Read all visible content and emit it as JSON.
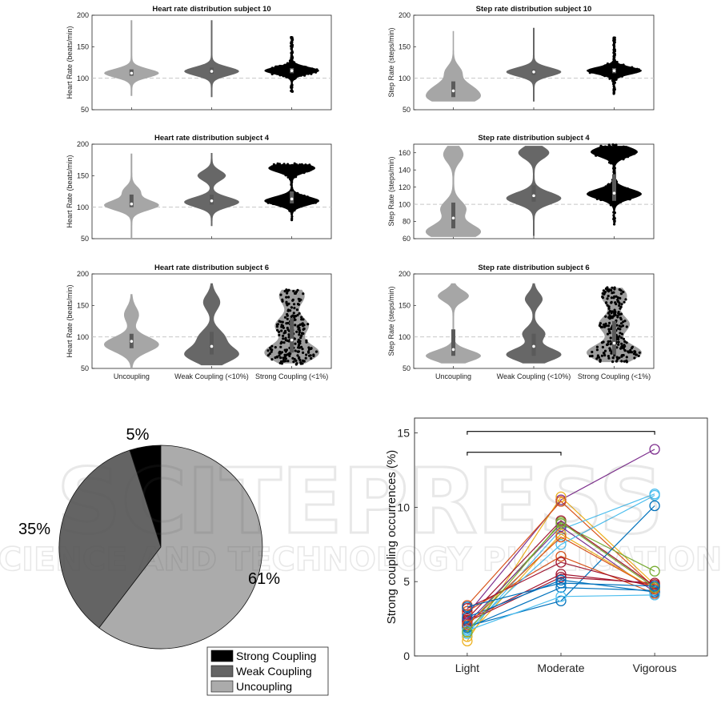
{
  "chart_data": [
    {
      "type": "violin",
      "title": "Heart rate distribution subject 10",
      "ylabel": "Heart Rate (beats/min)",
      "ylim": [
        50,
        200
      ],
      "yticks": [
        50,
        100,
        150,
        200
      ],
      "reference_line": 100,
      "categories": [
        "Uncoupling",
        "Weak Coupling (<10%)",
        "Strong Coupling (<1%)"
      ],
      "show_xticklabels": false,
      "groups": [
        {
          "name": "Uncoupling",
          "color": "#a6a6a6",
          "median": 108,
          "q1": 104,
          "q3": 114,
          "min": 72,
          "max": 192,
          "modes": [
            [
              108,
              1.0
            ]
          ],
          "spread": 7
        },
        {
          "name": "Weak Coupling (<10%)",
          "color": "#676767",
          "median": 111,
          "q1": 107,
          "q3": 117,
          "min": 70,
          "max": 192,
          "modes": [
            [
              111,
              1.0
            ]
          ],
          "spread": 7
        },
        {
          "name": "Strong Coupling (<1%)",
          "color": "#000000",
          "median": 112,
          "q1": 108,
          "q3": 116,
          "min": 77,
          "max": 165,
          "modes": [
            [
              112,
              1.0
            ]
          ],
          "spread": 6
        }
      ]
    },
    {
      "type": "violin",
      "title": "Step rate distribution subject 10",
      "ylabel": "Step Rate (steps/min)",
      "ylim": [
        50,
        200
      ],
      "yticks": [
        50,
        100,
        150,
        200
      ],
      "reference_line": 100,
      "categories": [
        "Uncoupling",
        "Weak Coupling (<10%)",
        "Strong Coupling (<1%)"
      ],
      "show_xticklabels": false,
      "groups": [
        {
          "name": "Uncoupling",
          "color": "#a6a6a6",
          "median": 80,
          "q1": 70,
          "q3": 95,
          "min": 63,
          "max": 175,
          "modes": [
            [
              68,
              1.0
            ],
            [
              85,
              0.7
            ],
            [
              110,
              0.35
            ]
          ],
          "spread": 10
        },
        {
          "name": "Weak Coupling (<10%)",
          "color": "#676767",
          "median": 110,
          "q1": 105,
          "q3": 114,
          "min": 63,
          "max": 180,
          "modes": [
            [
              110,
              1.0
            ]
          ],
          "spread": 7
        },
        {
          "name": "Strong Coupling (<1%)",
          "color": "#000000",
          "median": 112,
          "q1": 108,
          "q3": 116,
          "min": 75,
          "max": 165,
          "modes": [
            [
              112,
              1.0
            ]
          ],
          "spread": 6
        }
      ]
    },
    {
      "type": "violin",
      "title": "Heart rate distribution subject 4",
      "ylabel": "Heart Rate (beats/min)",
      "ylim": [
        50,
        200
      ],
      "yticks": [
        50,
        100,
        150,
        200
      ],
      "reference_line": 100,
      "categories": [
        "Uncoupling",
        "Weak Coupling (<10%)",
        "Strong Coupling (<1%)"
      ],
      "show_xticklabels": false,
      "groups": [
        {
          "name": "Uncoupling",
          "color": "#a6a6a6",
          "median": 105,
          "q1": 100,
          "q3": 120,
          "min": 50,
          "max": 185,
          "modes": [
            [
              103,
              1.0
            ],
            [
              125,
              0.3
            ]
          ],
          "spread": 8
        },
        {
          "name": "Weak Coupling (<10%)",
          "color": "#676767",
          "median": 110,
          "q1": 104,
          "q3": 120,
          "min": 70,
          "max": 186,
          "modes": [
            [
              108,
              1.0
            ],
            [
              150,
              0.5
            ]
          ],
          "spread": 8
        },
        {
          "name": "Strong Coupling (<1%)",
          "color": "#000000",
          "median": 113,
          "q1": 106,
          "q3": 125,
          "min": 78,
          "max": 168,
          "modes": [
            [
              110,
              1.0
            ],
            [
              162,
              0.85
            ]
          ],
          "spread": 7
        }
      ]
    },
    {
      "type": "violin",
      "title": "Step rate distribution subject 4",
      "ylabel": "Step Rate (steps/min)",
      "ylim": [
        60,
        170
      ],
      "yticks": [
        60,
        80,
        100,
        120,
        140,
        160
      ],
      "reference_line": 100,
      "categories": [
        "Uncoupling",
        "Weak Coupling (<10%)",
        "Strong Coupling (<1%)"
      ],
      "show_xticklabels": false,
      "groups": [
        {
          "name": "Uncoupling",
          "color": "#a6a6a6",
          "median": 84,
          "q1": 72,
          "q3": 102,
          "min": 62,
          "max": 168,
          "modes": [
            [
              68,
              1.0
            ],
            [
              95,
              0.45
            ],
            [
              158,
              0.35
            ]
          ],
          "spread": 9
        },
        {
          "name": "Weak Coupling (<10%)",
          "color": "#676767",
          "median": 110,
          "q1": 103,
          "q3": 122,
          "min": 63,
          "max": 168,
          "modes": [
            [
              107,
              1.0
            ],
            [
              160,
              0.55
            ]
          ],
          "spread": 7
        },
        {
          "name": "Strong Coupling (<1%)",
          "color": "#000000",
          "median": 113,
          "q1": 104,
          "q3": 135,
          "min": 78,
          "max": 168,
          "modes": [
            [
              112,
              1.0
            ],
            [
              161,
              0.85
            ]
          ],
          "spread": 6
        }
      ]
    },
    {
      "type": "violin",
      "title": "Heart rate distribution subject 6",
      "ylabel": "Heart Rate (beats/min)",
      "ylim": [
        50,
        200
      ],
      "yticks": [
        50,
        100,
        150,
        200
      ],
      "reference_line": 100,
      "categories": [
        "Uncoupling",
        "Weak Coupling (<10%)",
        "Strong Coupling (<1%)"
      ],
      "show_xticklabels": true,
      "groups": [
        {
          "name": "Uncoupling",
          "color": "#a6a6a6",
          "median": 93,
          "q1": 82,
          "q3": 105,
          "min": 50,
          "max": 168,
          "modes": [
            [
              88,
              1.0
            ],
            [
              135,
              0.25
            ]
          ],
          "spread": 12
        },
        {
          "name": "Weak Coupling (<10%)",
          "color": "#676767",
          "median": 85,
          "q1": 72,
          "q3": 108,
          "min": 55,
          "max": 185,
          "modes": [
            [
              72,
              1.0
            ],
            [
              100,
              0.45
            ],
            [
              155,
              0.3
            ]
          ],
          "spread": 12
        },
        {
          "name": "Strong Coupling (<1%)",
          "color": "#999999",
          "median": 95,
          "q1": 75,
          "q3": 130,
          "min": 58,
          "max": 175,
          "modes": [
            [
              75,
              1.0
            ],
            [
              118,
              0.6
            ],
            [
              165,
              0.45
            ]
          ],
          "spread": 14
        }
      ]
    },
    {
      "type": "violin",
      "title": "Step rate distribution subject 6",
      "ylabel": "Step Rate (steps/min)",
      "ylim": [
        50,
        200
      ],
      "yticks": [
        50,
        100,
        150,
        200
      ],
      "reference_line": 100,
      "categories": [
        "Uncoupling",
        "Weak Coupling (<10%)",
        "Strong Coupling (<1%)"
      ],
      "show_xticklabels": true,
      "groups": [
        {
          "name": "Uncoupling",
          "color": "#a6a6a6",
          "median": 80,
          "q1": 70,
          "q3": 112,
          "min": 58,
          "max": 185,
          "modes": [
            [
              70,
              1.0
            ],
            [
              165,
              0.55
            ]
          ],
          "spread": 9
        },
        {
          "name": "Weak Coupling (<10%)",
          "color": "#676767",
          "median": 85,
          "q1": 70,
          "q3": 105,
          "min": 58,
          "max": 185,
          "modes": [
            [
              72,
              1.0
            ],
            [
              105,
              0.4
            ],
            [
              160,
              0.3
            ]
          ],
          "spread": 10
        },
        {
          "name": "Strong Coupling (<1%)",
          "color": "#999999",
          "median": 90,
          "q1": 72,
          "q3": 125,
          "min": 60,
          "max": 178,
          "modes": [
            [
              75,
              1.0
            ],
            [
              120,
              0.55
            ],
            [
              165,
              0.45
            ]
          ],
          "spread": 13
        }
      ]
    },
    {
      "type": "pie",
      "slices": [
        {
          "label": "Strong Coupling",
          "value": 5,
          "text": "5%",
          "color": "#000000"
        },
        {
          "label": "Weak Coupling",
          "value": 35,
          "text": "35%",
          "color": "#646464"
        },
        {
          "label": "Uncoupling",
          "value": 61,
          "text": "61%",
          "color": "#ababab"
        }
      ],
      "legend_placement": "bottom-right",
      "legend": [
        "Strong Coupling",
        "Weak Coupling",
        "Uncoupling"
      ]
    },
    {
      "type": "line",
      "categories": [
        "Light",
        "Moderate",
        "Vigorous"
      ],
      "ylabel": "Strong coupling occurrences (%)",
      "ylim": [
        0,
        16
      ],
      "yticks": [
        0,
        5,
        10,
        15
      ],
      "significance_brackets": [
        {
          "from": "Light",
          "to": "Vigorous",
          "y": 15.1
        },
        {
          "from": "Light",
          "to": "Moderate",
          "y": 13.7
        }
      ],
      "series": [
        {
          "color": "#7e2f8e",
          "values": [
            2.8,
            10.5,
            13.9
          ]
        },
        {
          "color": "#edb120",
          "values": [
            1.0,
            10.7,
            4.8
          ]
        },
        {
          "color": "#d95319",
          "values": [
            3.4,
            10.4,
            4.6
          ]
        },
        {
          "color": "#4dbeee",
          "values": [
            1.5,
            8.5,
            10.9
          ]
        },
        {
          "color": "#77ac30",
          "values": [
            2.0,
            8.9,
            5.7
          ]
        },
        {
          "color": "#a2142f",
          "values": [
            2.5,
            9.1,
            4.7
          ]
        },
        {
          "color": "#0072bd",
          "values": [
            2.0,
            3.7,
            10.1
          ]
        },
        {
          "color": "#7e2f8e",
          "values": [
            2.2,
            8.7,
            4.3
          ]
        },
        {
          "color": "#edb120",
          "values": [
            1.3,
            8.2,
            4.5
          ]
        },
        {
          "color": "#d95319",
          "values": [
            3.0,
            6.7,
            4.2
          ]
        },
        {
          "color": "#4dbeee",
          "values": [
            1.8,
            7.5,
            10.8
          ]
        },
        {
          "color": "#a2142f",
          "values": [
            3.2,
            6.3,
            4.6
          ]
        },
        {
          "color": "#a2142f",
          "values": [
            2.4,
            5.5,
            4.8
          ]
        },
        {
          "color": "#a2142f",
          "values": [
            2.3,
            5.3,
            4.9
          ]
        },
        {
          "color": "#0072bd",
          "values": [
            1.9,
            4.6,
            4.4
          ]
        },
        {
          "color": "#0072bd",
          "values": [
            2.6,
            5.1,
            4.3
          ]
        },
        {
          "color": "#4dbeee",
          "values": [
            1.7,
            4.0,
            4.1
          ]
        },
        {
          "color": "#d95319",
          "values": [
            2.1,
            8.0,
            4.5
          ]
        },
        {
          "color": "#77ac30",
          "values": [
            1.6,
            9.0,
            4.6
          ]
        },
        {
          "color": "#0072bd",
          "values": [
            3.3,
            4.9,
            4.7
          ]
        }
      ]
    }
  ],
  "watermark": {
    "line1": "SCITEPRESS",
    "line2": "SCIENCE AND TECHNOLOGY PUBLICATIONS"
  }
}
